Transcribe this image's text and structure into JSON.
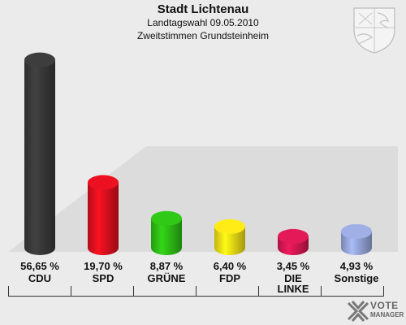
{
  "chart_data": {
    "type": "bar",
    "title": "Stadt Lichtenau",
    "subtitle": "Landtagswahl 09.05.2010",
    "subtitle2": "Zweitstimmen Grundsteinheim",
    "categories": [
      "CDU",
      "SPD",
      "GRÜNE",
      "FDP",
      "DIE LINKE",
      "Sonstige"
    ],
    "values": [
      56.65,
      19.7,
      8.87,
      6.4,
      3.45,
      4.93
    ],
    "value_labels": [
      "56,65 %",
      "19,70 %",
      "8,87 %",
      "6,40 %",
      "3,45 %",
      "4,93 %"
    ],
    "colors": [
      "#3a3a3a",
      "#e0101e",
      "#2ec015",
      "#f5e014",
      "#d81854",
      "#98a8dc"
    ],
    "ylim": [
      0,
      60
    ],
    "grid": false,
    "legend": "none"
  },
  "logo": {
    "line1": "VOTE",
    "line2": "MANAGER"
  }
}
